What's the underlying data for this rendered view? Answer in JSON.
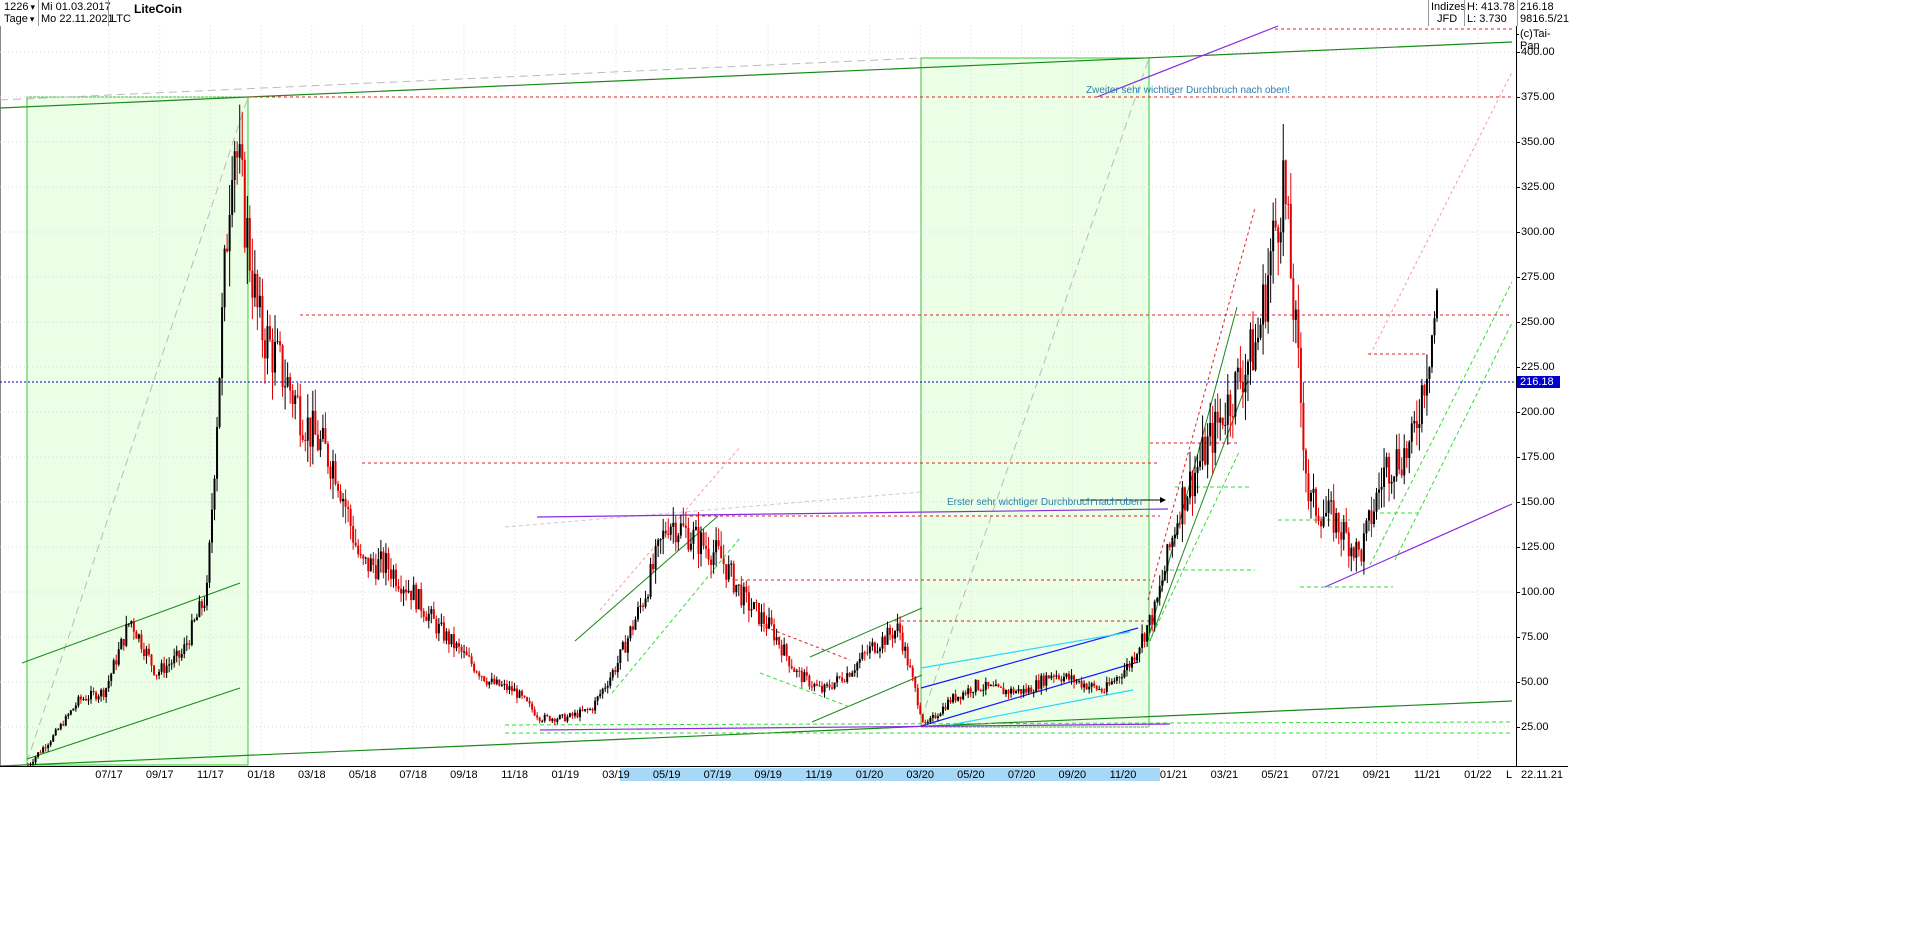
{
  "header": {
    "count": "1226",
    "start_date": "Mi 01.03.2017",
    "period": "Tage",
    "end_date": "Mo 22.11.2021",
    "symbol": "LTC",
    "title": "LiteCoin",
    "group_a": "Indizes",
    "group_b": "JFD",
    "high": "H: 413.78",
    "low": "L: 3.730",
    "last": "216.18",
    "datestamp": "9816.5/21",
    "copyright": "(c)Tai-Pan"
  },
  "colors": {
    "up_candle": "#000000",
    "down_candle": "#e00000",
    "box_fill": "#eaffe6",
    "box_border": "#33cc33",
    "trend_dark_green": "#1a8a1a",
    "trend_light_green": "#33dd33",
    "resistance_red": "#e02020",
    "purple": "#8a2be2",
    "blue": "#1a1aff",
    "cyan": "#2fd6ff",
    "price_line": "#0000cc"
  },
  "annotations": {
    "first_breakout": "Erster sehr wichtiger Durchbruch nach oben",
    "second_breakout": "Zweiter sehr wichtiger Durchbruch nach oben!"
  },
  "chart_data": {
    "type": "candlestick",
    "title": "LiteCoin",
    "ylim": [
      0,
      420
    ],
    "yticks": [
      "400.00",
      "375.00",
      "350.00",
      "325.00",
      "300.00",
      "275.00",
      "250.00",
      "225.00",
      "200.00",
      "175.00",
      "150.00",
      "125.00",
      "100.00",
      "75.00",
      "50.00",
      "25.00"
    ],
    "current_price": "216.18",
    "x_labels": [
      "07/17",
      "09/17",
      "11/17",
      "01/18",
      "03/18",
      "05/18",
      "07/18",
      "09/18",
      "11/18",
      "01/19",
      "03/19",
      "05/19",
      "07/19",
      "09/19",
      "11/19",
      "01/20",
      "03/20",
      "05/20",
      "07/20",
      "09/20",
      "11/20",
      "01/21",
      "03/21",
      "05/21",
      "07/21",
      "09/21",
      "11/21",
      "01/22",
      "22.11.21"
    ],
    "axis_letter": "L",
    "series": [
      {
        "x": [
          "03/17",
          "05/17",
          "07/17",
          "08/17",
          "09/17",
          "10/17",
          "11/17",
          "12/17",
          "12/17",
          "01/18",
          "02/18",
          "03/18",
          "04/18",
          "05/18",
          "06/18",
          "07/18",
          "08/18",
          "09/18",
          "10/18",
          "11/18",
          "12/18",
          "01/19",
          "02/19",
          "03/19",
          "04/19",
          "05/19",
          "06/19",
          "07/19",
          "08/19",
          "09/19",
          "10/19",
          "11/19",
          "12/19",
          "01/20",
          "02/20",
          "03/20",
          "04/20",
          "05/20",
          "06/20",
          "07/20",
          "08/20",
          "09/20",
          "10/20",
          "11/20",
          "12/20",
          "01/21",
          "02/21",
          "03/21",
          "04/21",
          "05/21",
          "06/21",
          "07/21",
          "08/21",
          "09/21",
          "10/21",
          "11/21"
        ],
        "y": [
          4,
          20,
          40,
          45,
          85,
          55,
          65,
          100,
          360,
          250,
          220,
          190,
          170,
          115,
          115,
          100,
          80,
          65,
          50,
          45,
          30,
          30,
          35,
          60,
          95,
          140,
          130,
          120,
          95,
          80,
          55,
          45,
          55,
          70,
          80,
          25,
          40,
          48,
          45,
          45,
          55,
          50,
          45,
          60,
          90,
          150,
          180,
          210,
          240,
          330,
          150,
          140,
          120,
          170,
          180,
          260
        ]
      }
    ]
  }
}
